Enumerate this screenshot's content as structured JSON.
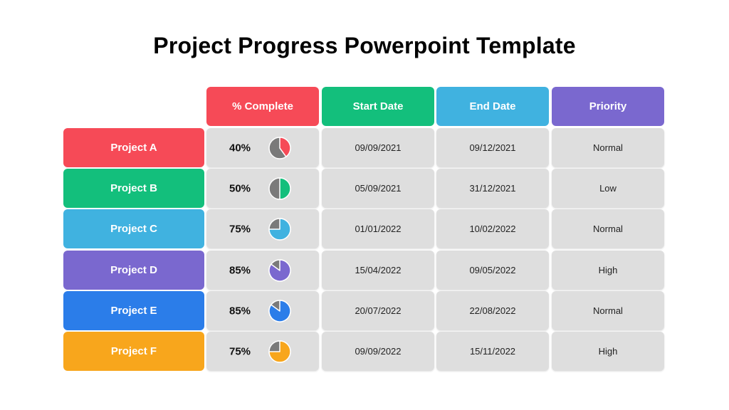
{
  "title": "Project Progress Powerpoint Template",
  "headers": [
    {
      "label": "% Complete",
      "color": "#f64a57"
    },
    {
      "label": "Start Date",
      "color": "#13bf7c"
    },
    {
      "label": "End Date",
      "color": "#40b2e0"
    },
    {
      "label": "Priority",
      "color": "#7a68cf"
    }
  ],
  "pie_gray": "#7a7a7a",
  "projects": [
    {
      "name": "Project A",
      "color": "#f64a57",
      "percent": "40%",
      "fraction": 0.4,
      "start": "09/09/2021",
      "end": "09/12/2021",
      "priority": "Normal"
    },
    {
      "name": "Project B",
      "color": "#13bf7c",
      "percent": "50%",
      "fraction": 0.5,
      "start": "05/09/2021",
      "end": "31/12/2021",
      "priority": "Low"
    },
    {
      "name": "Project C",
      "color": "#40b2e0",
      "percent": "75%",
      "fraction": 0.75,
      "start": "01/01/2022",
      "end": "10/02/2022",
      "priority": "Normal"
    },
    {
      "name": "Project D",
      "color": "#7a68cf",
      "percent": "85%",
      "fraction": 0.85,
      "start": "15/04/2022",
      "end": "09/05/2022",
      "priority": "High"
    },
    {
      "name": "Project E",
      "color": "#2b7de9",
      "percent": "85%",
      "fraction": 0.85,
      "start": "20/07/2022",
      "end": "22/08/2022",
      "priority": "Normal"
    },
    {
      "name": "Project F",
      "color": "#f8a61c",
      "percent": "75%",
      "fraction": 0.75,
      "start": "09/09/2022",
      "end": "15/11/2022",
      "priority": "High"
    }
  ]
}
